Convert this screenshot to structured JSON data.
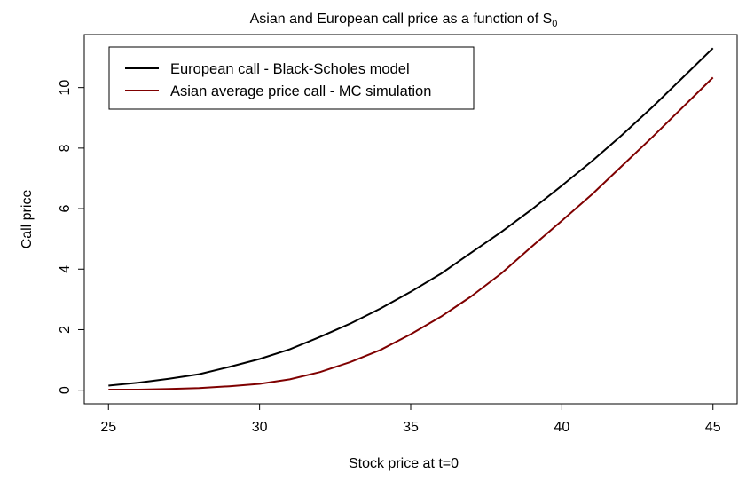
{
  "chart_data": {
    "type": "line",
    "title": "Asian and European call price as a function of S",
    "title_subscript": "0",
    "xlabel": "Stock price at t=0",
    "ylabel": "Call price",
    "xlim": [
      24.2,
      45.8
    ],
    "ylim": [
      -0.45,
      11.75
    ],
    "xticks": [
      25,
      30,
      35,
      40,
      45
    ],
    "yticks": [
      0,
      2,
      4,
      6,
      8,
      10
    ],
    "grid": false,
    "legend_position": "top-left",
    "x": [
      25,
      26,
      27,
      28,
      29,
      30,
      31,
      32,
      33,
      34,
      35,
      36,
      37,
      38,
      39,
      40,
      41,
      42,
      43,
      44,
      45
    ],
    "series": [
      {
        "name": "European call - Black-Scholes model",
        "color": "#000000",
        "values": [
          0.15,
          0.25,
          0.38,
          0.53,
          0.77,
          1.03,
          1.35,
          1.76,
          2.2,
          2.7,
          3.25,
          3.85,
          4.54,
          5.23,
          5.97,
          6.76,
          7.57,
          8.44,
          9.36,
          10.33,
          11.3
        ]
      },
      {
        "name": "Asian average price call - MC simulation",
        "color": "#7f0000",
        "values": [
          0.02,
          0.02,
          0.04,
          0.07,
          0.13,
          0.21,
          0.36,
          0.6,
          0.93,
          1.33,
          1.85,
          2.43,
          3.1,
          3.86,
          4.74,
          5.6,
          6.47,
          7.42,
          8.37,
          9.35,
          10.33
        ]
      }
    ]
  }
}
